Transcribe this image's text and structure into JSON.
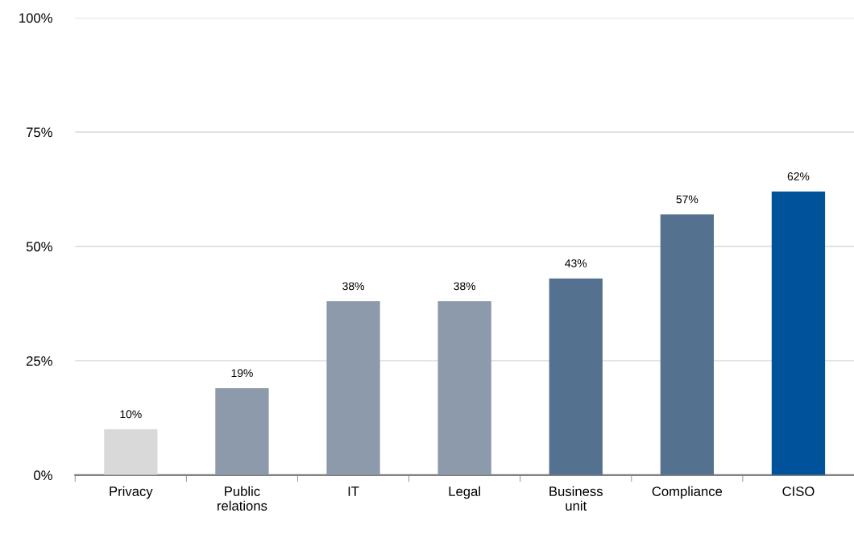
{
  "chart_data": {
    "type": "bar",
    "categories": [
      "Privacy",
      "Public\nrelations",
      "IT",
      "Legal",
      "Business\nunit",
      "Compliance",
      "CISO"
    ],
    "values": [
      10,
      19,
      38,
      38,
      43,
      57,
      62
    ],
    "colors": [
      "#d9d9d9",
      "#8c9aab",
      "#8c9aab",
      "#8c9aab",
      "#54728f",
      "#54728f",
      "#00539b"
    ],
    "value_labels": [
      "10%",
      "19%",
      "38%",
      "38%",
      "43%",
      "57%",
      "62%"
    ],
    "ylim": [
      0,
      100
    ],
    "yticks": [
      {
        "value": 0,
        "label": "0%"
      },
      {
        "value": 25,
        "label": "25%"
      },
      {
        "value": 50,
        "label": "50%"
      },
      {
        "value": 75,
        "label": "75%"
      },
      {
        "value": 100,
        "label": "100%"
      }
    ],
    "grid": "y"
  }
}
